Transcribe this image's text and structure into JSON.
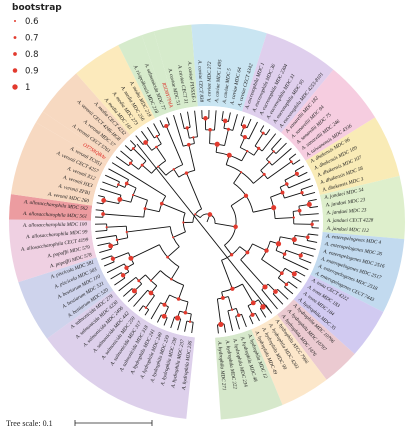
{
  "legend": {
    "title": "bootstrap",
    "items": [
      {
        "label": "0.6",
        "value": 0.6
      },
      {
        "label": "0.7",
        "value": 0.7
      },
      {
        "label": "0.8",
        "value": 0.8
      },
      {
        "label": "0.9",
        "value": 0.9
      },
      {
        "label": "1",
        "value": 1.0
      }
    ],
    "dot_color": "#e23a2e"
  },
  "scale": {
    "label": "Tree scale: 0.1"
  },
  "clades": [
    {
      "color": "#d7c8e8",
      "leaves": [
        "A. hydrophila MDC 236",
        "A. hydrophila MDC 237",
        "A. hydrophila MDC 238",
        "A. hydrophila MDC 239",
        "A. hydrophila MDC 240",
        "A. hydrophila MDC 241",
        "A. salmonicida MDC 318",
        "A. salmonicida MDC 317",
        "A. salmonicida MDC 259",
        "A. salmonicida MDC 442",
        "A. salmonicida MDC 2406",
        "A. salmonicida MDC 4230",
        "A. salmonicida MDC 279"
      ]
    },
    {
      "color": "#c6cbe9",
      "leaves": [
        "A. bestiarum MDC 520",
        "A. bestiarum MDC 521",
        "A. bestiarum MDC 110",
        "A. piscicola MDC 303",
        "A. piscicola MDC 581"
      ]
    },
    {
      "color": "#ecc8dd",
      "leaves": [
        "A. popoffii MDC 578",
        "A. popoffii MDC 579",
        "A. allosaccharophila CECT 4199",
        "A. allosaccharophila MDC 99",
        "A. allosaccharophila MDC 100"
      ]
    },
    {
      "color": "#e98b8f",
      "leaves": [
        "A. allosaccharophila MDC 561",
        "A. allosaccharophila MDC 562"
      ]
    },
    {
      "color": "#f6d2b6",
      "leaves": [
        "A. veronii MDC 260",
        "A. veronii ZFB1",
        "A. veronii HX3",
        "A. veronii X12",
        "A. veronii CECT 4257",
        "A. veronii TC951"
      ]
    },
    {
      "color": "#f6d2b6",
      "red": true,
      "leaves": [
        "OT7S8QBAv"
      ]
    },
    {
      "color": "#f6d2b6",
      "leaves": [
        "A. veronii CECT 5761",
        "A. veronii MDC 57",
        "A. veronii CECT 4246-HG8",
        "A. media CECT 4232"
      ]
    },
    {
      "color": "#fbe6b0",
      "leaves": [
        "A. media MDC 181",
        "A. media MDC 273",
        "A. media MDC 256",
        "A. media MDC 219"
      ]
    },
    {
      "color": "#cfe7c3",
      "leaves": [
        "A. rivipollensis MDC 218",
        "A. salmonicida MDC 77"
      ]
    },
    {
      "color": "#cfe7c3",
      "red": true,
      "leaves": [
        "R5D8Y7PdA"
      ]
    },
    {
      "color": "#cfe7c3",
      "leaves": [
        "A. caviae MDC 51",
        "A. caviae CECT 31",
        "A. caviae PINSXE-1"
      ]
    },
    {
      "color": "#bfe1f0",
      "leaves": [
        "A. caviae CECT 838",
        "A. caviae MDC 272",
        "A. caviae MDC 1495",
        "A. caviae MDC 5",
        "A. caviae MDC 64",
        "A. caviae CECT 4342"
      ]
    },
    {
      "color": "#d9c7ea",
      "leaves": [
        "A. eucrenophila MDC 1",
        "A. eucrenophila MDC 36",
        "A. eucrenophila MDC 2304",
        "A. eucrenophila MDC 31",
        "A. eucrenophila MDC 95",
        "A. eucrenophila MDC 4253-8101"
      ]
    },
    {
      "color": "#f4c4da",
      "leaves": [
        "A. sanarellii MDC 182",
        "A. sanarellii MDC 94",
        "A. sanarellii MDC 75",
        "A. sanarellii MDC 246",
        "A. taiwanensis MDC 4336"
      ]
    },
    {
      "color": "#f8e7a9",
      "leaves": [
        "A. dhakensis MDC 96",
        "A. dhakensis MDC 109",
        "A. dhakensis MDC 107",
        "A. dhakensis MDC 58",
        "A. dhakensis MDC 3"
      ]
    },
    {
      "color": "#d8ecc3",
      "leaves": [
        "A. jandaei MDC 54",
        "A. jandaei MDC 23",
        "A. jandaei MDC 23",
        "A. jandaei CECT 4228",
        "A. jandaei MDC 112"
      ]
    },
    {
      "color": "#b7d3ec",
      "leaves": [
        "A. enteropelogenes MDC 4",
        "A. enteropelogenes MDC 26",
        "A. enteropelogenes MDC 2516",
        "A. enteropelogenes MDC 2517",
        "A. enteropelogenes MDC 2518",
        "A. enteropelogenes CECT 7443"
      ]
    },
    {
      "color": "#c9c1ee",
      "leaves": [
        "A. trota CECT 4222",
        "A. trota MDC 183",
        "A. trota MDC 184",
        "A. hydrophila MDC 35"
      ]
    },
    {
      "color": "#e8c1c9",
      "leaves": [
        "A. hydrophila MDC 10796",
        "A. hydrophila MDC 10797",
        "A. hydrophila MDC 1476"
      ]
    },
    {
      "color": "#fbe3c1",
      "leaves": [
        "A. hydrophila ATCC 7966",
        "A. hydrophila MDC 4203",
        "A. hydrophila MDC 99",
        "A. hydrophila MDC 49"
      ]
    },
    {
      "color": "#cfe4c2",
      "leaves": [
        "A. hydrophila MDC 12",
        "A. hydrophila MDC 48",
        "A. hydrophila MDC 234",
        "A. hydrophila MDC 222",
        "A. hydrophila MDC 271"
      ]
    }
  ]
}
